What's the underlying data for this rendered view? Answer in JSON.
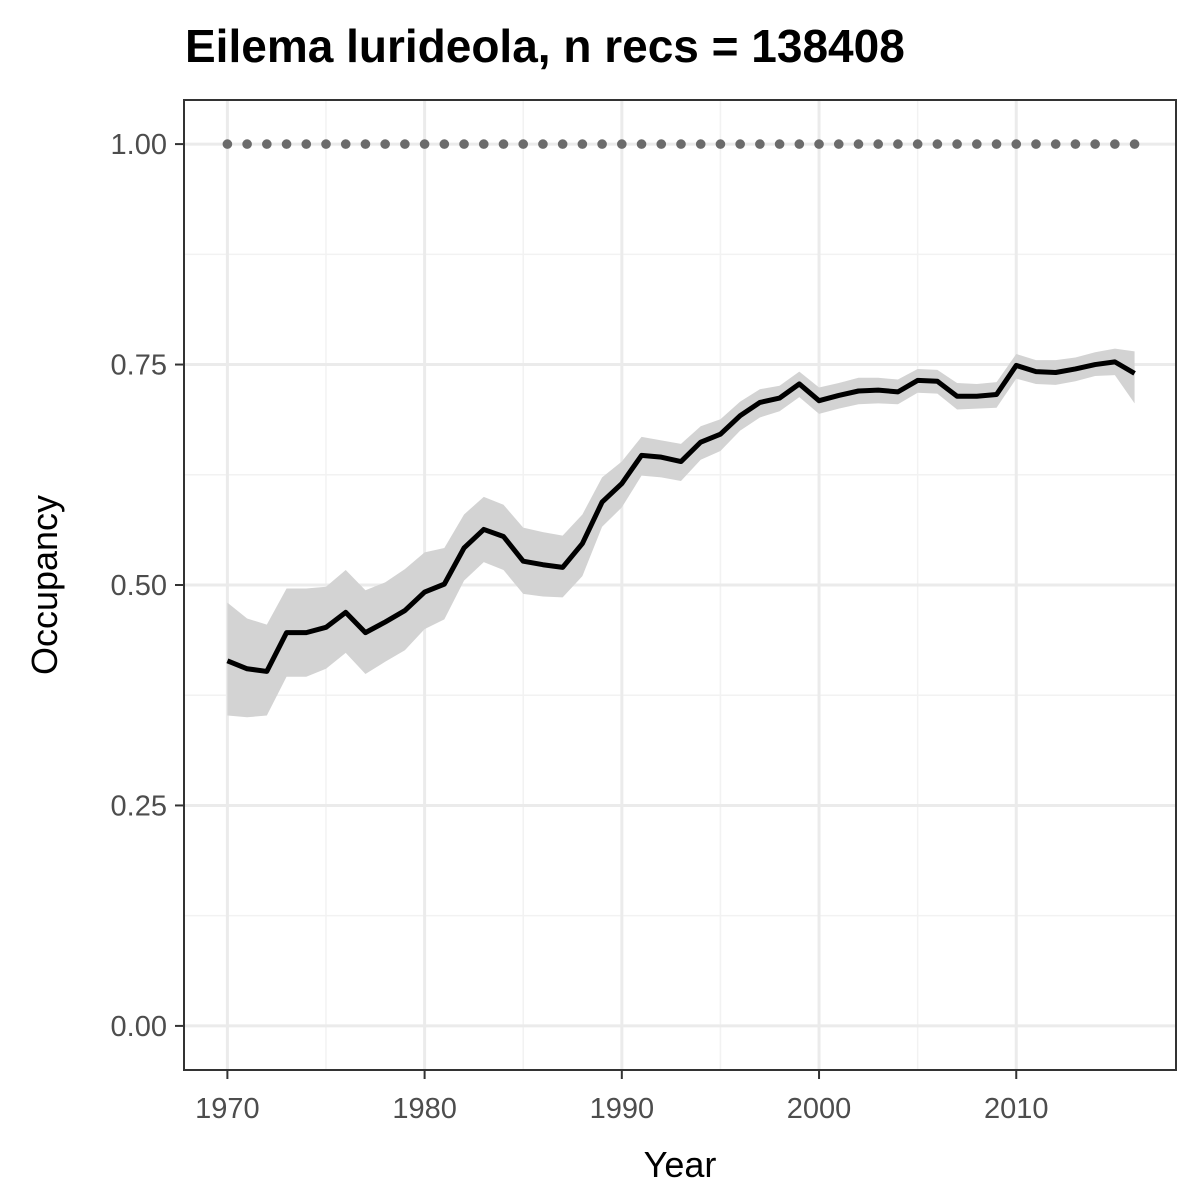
{
  "chart_data": {
    "type": "line",
    "title": "Eilema lurideola, n recs = 138408",
    "xlabel": "Year",
    "ylabel": "Occupancy",
    "xlim": [
      1967.8,
      2018.1
    ],
    "ylim": [
      -0.05,
      1.05
    ],
    "x_ticks": [
      1970,
      1980,
      1990,
      2000,
      2010
    ],
    "x_tick_labels": [
      "1970",
      "1980",
      "1990",
      "2000",
      "2010"
    ],
    "y_ticks": [
      0,
      0.25,
      0.5,
      0.75,
      1.0
    ],
    "y_tick_labels": [
      "0.00",
      "0.25",
      "0.50",
      "0.75",
      "1.00"
    ],
    "grid": true,
    "legend": "none",
    "series": [
      {
        "role": "mean",
        "color": "#000000",
        "x": [
          1970,
          1971,
          1972,
          1973,
          1974,
          1975,
          1976,
          1977,
          1978,
          1979,
          1980,
          1981,
          1982,
          1983,
          1984,
          1985,
          1986,
          1987,
          1988,
          1989,
          1990,
          1991,
          1992,
          1993,
          1994,
          1995,
          1996,
          1997,
          1998,
          1999,
          2000,
          2001,
          2002,
          2003,
          2004,
          2005,
          2006,
          2007,
          2008,
          2009,
          2010,
          2011,
          2012,
          2013,
          2014,
          2015,
          2016
        ],
        "values": [
          0.414,
          0.405,
          0.402,
          0.446,
          0.446,
          0.452,
          0.469,
          0.446,
          0.458,
          0.471,
          0.492,
          0.501,
          0.542,
          0.563,
          0.555,
          0.527,
          0.523,
          0.52,
          0.547,
          0.594,
          0.615,
          0.647,
          0.645,
          0.64,
          0.662,
          0.671,
          0.692,
          0.707,
          0.712,
          0.728,
          0.709,
          0.715,
          0.72,
          0.721,
          0.719,
          0.732,
          0.731,
          0.714,
          0.714,
          0.716,
          0.749,
          0.742,
          0.741,
          0.745,
          0.75,
          0.753,
          0.74
        ]
      },
      {
        "role": "upper-bound",
        "color": "#d3d3d3",
        "x": [
          1970,
          1971,
          1972,
          1973,
          1974,
          1975,
          1976,
          1977,
          1978,
          1979,
          1980,
          1981,
          1982,
          1983,
          1984,
          1985,
          1986,
          1987,
          1988,
          1989,
          1990,
          1991,
          1992,
          1993,
          1994,
          1995,
          1996,
          1997,
          1998,
          1999,
          2000,
          2001,
          2002,
          2003,
          2004,
          2005,
          2006,
          2007,
          2008,
          2009,
          2010,
          2011,
          2012,
          2013,
          2014,
          2015,
          2016
        ],
        "values": [
          0.48,
          0.462,
          0.455,
          0.496,
          0.496,
          0.498,
          0.517,
          0.494,
          0.503,
          0.518,
          0.537,
          0.542,
          0.58,
          0.6,
          0.591,
          0.565,
          0.56,
          0.556,
          0.58,
          0.622,
          0.64,
          0.668,
          0.664,
          0.66,
          0.68,
          0.688,
          0.708,
          0.722,
          0.726,
          0.742,
          0.724,
          0.729,
          0.735,
          0.735,
          0.733,
          0.745,
          0.744,
          0.729,
          0.728,
          0.73,
          0.762,
          0.755,
          0.755,
          0.758,
          0.764,
          0.768,
          0.765
        ]
      },
      {
        "role": "lower-bound",
        "color": "#d3d3d3",
        "x": [
          1970,
          1971,
          1972,
          1973,
          1974,
          1975,
          1976,
          1977,
          1978,
          1979,
          1980,
          1981,
          1982,
          1983,
          1984,
          1985,
          1986,
          1987,
          1988,
          1989,
          1990,
          1991,
          1992,
          1993,
          1994,
          1995,
          1996,
          1997,
          1998,
          1999,
          2000,
          2001,
          2002,
          2003,
          2004,
          2005,
          2006,
          2007,
          2008,
          2009,
          2010,
          2011,
          2012,
          2013,
          2014,
          2015,
          2016
        ],
        "values": [
          0.352,
          0.35,
          0.352,
          0.396,
          0.396,
          0.405,
          0.423,
          0.399,
          0.413,
          0.426,
          0.45,
          0.461,
          0.505,
          0.526,
          0.517,
          0.49,
          0.487,
          0.486,
          0.51,
          0.566,
          0.588,
          0.624,
          0.622,
          0.618,
          0.642,
          0.652,
          0.675,
          0.69,
          0.697,
          0.713,
          0.694,
          0.7,
          0.705,
          0.706,
          0.705,
          0.718,
          0.717,
          0.699,
          0.7,
          0.701,
          0.734,
          0.728,
          0.727,
          0.731,
          0.737,
          0.738,
          0.706
        ]
      },
      {
        "role": "reference",
        "color": "#6b6b6b",
        "x": [
          1970,
          1971,
          1972,
          1973,
          1974,
          1975,
          1976,
          1977,
          1978,
          1979,
          1980,
          1981,
          1982,
          1983,
          1984,
          1985,
          1986,
          1987,
          1988,
          1989,
          1990,
          1991,
          1992,
          1993,
          1994,
          1995,
          1996,
          1997,
          1998,
          1999,
          2000,
          2001,
          2002,
          2003,
          2004,
          2005,
          2006,
          2007,
          2008,
          2009,
          2010,
          2011,
          2012,
          2013,
          2014,
          2015,
          2016
        ],
        "values": [
          1,
          1,
          1,
          1,
          1,
          1,
          1,
          1,
          1,
          1,
          1,
          1,
          1,
          1,
          1,
          1,
          1,
          1,
          1,
          1,
          1,
          1,
          1,
          1,
          1,
          1,
          1,
          1,
          1,
          1,
          1,
          1,
          1,
          1,
          1,
          1,
          1,
          1,
          1,
          1,
          1,
          1,
          1,
          1,
          1,
          1,
          1
        ]
      }
    ]
  }
}
